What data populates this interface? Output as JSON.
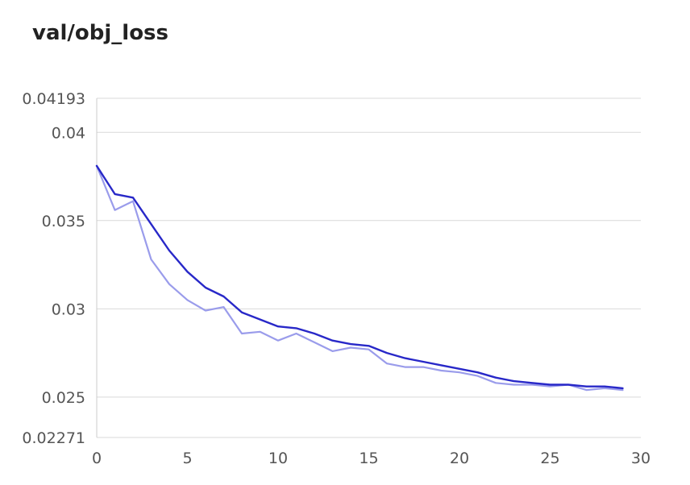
{
  "chart_data": {
    "type": "line",
    "title": "val/obj_loss",
    "xlabel": "",
    "ylabel": "",
    "xlim": [
      0,
      30
    ],
    "ylim": [
      0.02271,
      0.04193
    ],
    "xticks": [
      "0",
      "5",
      "10",
      "15",
      "20",
      "25",
      "30"
    ],
    "yticks": [
      "0.02271",
      "0.025",
      "0.03",
      "0.035",
      "0.04",
      "0.04193"
    ],
    "grid": "horizontal",
    "x": [
      0,
      1,
      2,
      3,
      4,
      5,
      6,
      7,
      8,
      9,
      10,
      11,
      12,
      13,
      14,
      15,
      16,
      17,
      18,
      19,
      20,
      21,
      22,
      23,
      24,
      25,
      26,
      27,
      28,
      29
    ],
    "series": [
      {
        "color": "#9a9ceb",
        "values": [
          0.0381,
          0.0356,
          0.0361,
          0.0328,
          0.0314,
          0.0305,
          0.0299,
          0.0301,
          0.0286,
          0.0287,
          0.0282,
          0.0286,
          0.0281,
          0.0276,
          0.0278,
          0.0277,
          0.0269,
          0.0267,
          0.0267,
          0.0265,
          0.0264,
          0.0262,
          0.0258,
          0.0257,
          0.0257,
          0.0256,
          0.0257,
          0.0254,
          0.0255,
          0.0254
        ]
      },
      {
        "color": "#2828c8",
        "values": [
          0.0381,
          0.0365,
          0.0363,
          0.0348,
          0.0333,
          0.0321,
          0.0312,
          0.0307,
          0.0298,
          0.0294,
          0.029,
          0.0289,
          0.0286,
          0.0282,
          0.028,
          0.0279,
          0.0275,
          0.0272,
          0.027,
          0.0268,
          0.0266,
          0.0264,
          0.0261,
          0.0259,
          0.0258,
          0.0257,
          0.0257,
          0.0256,
          0.0256,
          0.0255
        ]
      }
    ]
  }
}
